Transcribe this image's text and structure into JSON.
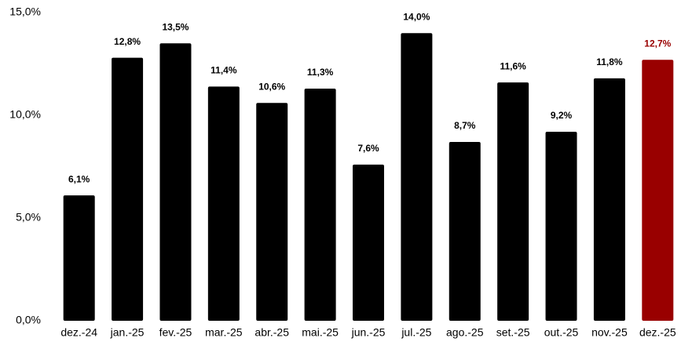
{
  "chart_data": {
    "type": "bar",
    "categories": [
      "dez.-24",
      "jan.-25",
      "fev.-25",
      "mar.-25",
      "abr.-25",
      "mai.-25",
      "jun.-25",
      "jul.-25",
      "ago.-25",
      "set.-25",
      "out.-25",
      "nov.-25",
      "dez.-25"
    ],
    "values": [
      6.1,
      12.8,
      13.5,
      11.4,
      10.6,
      11.3,
      7.6,
      14.0,
      8.7,
      11.6,
      9.2,
      11.8,
      12.7
    ],
    "value_labels": [
      "6,1%",
      "12,8%",
      "13,5%",
      "11,4%",
      "10,6%",
      "11,3%",
      "7,6%",
      "14,0%",
      "8,7%",
      "11,6%",
      "9,2%",
      "11,8%",
      "12,7%"
    ],
    "colors": [
      "#000000",
      "#000000",
      "#000000",
      "#000000",
      "#000000",
      "#000000",
      "#000000",
      "#000000",
      "#000000",
      "#000000",
      "#000000",
      "#000000",
      "#990000"
    ],
    "ylim": [
      0,
      15
    ],
    "yticks": [
      {
        "value": 0,
        "label": "0,0%"
      },
      {
        "value": 5,
        "label": "5,0%"
      },
      {
        "value": 10,
        "label": "10,0%"
      },
      {
        "value": 15,
        "label": "15,0%"
      }
    ],
    "grid": false
  }
}
